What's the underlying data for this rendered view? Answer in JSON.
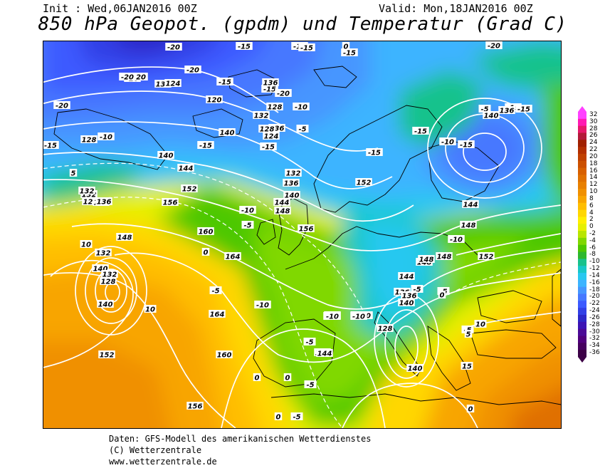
{
  "header": {
    "init": "Init : Wed,06JAN2016 00Z",
    "valid": "Valid: Mon,18JAN2016 00Z",
    "title": "850 hPa Geopot. (gpdm) und Temperatur (Grad C)"
  },
  "colors": {
    "contour": "#ffffff",
    "coast": "#000000"
  },
  "colorbar": {
    "ticks": [
      "32",
      "30",
      "28",
      "26",
      "24",
      "22",
      "20",
      "18",
      "16",
      "14",
      "12",
      "10",
      "8",
      "6",
      "4",
      "2",
      "0",
      "-2",
      "-4",
      "-6",
      "-8",
      "-10",
      "-12",
      "-14",
      "-16",
      "-18",
      "-20",
      "-22",
      "-24",
      "-26",
      "-28",
      "-30",
      "-32",
      "-34",
      "-36"
    ],
    "colors": [
      "#ff40ff",
      "#ff1ab3",
      "#e6196b",
      "#b31a3a",
      "#a02000",
      "#b32f00",
      "#c04000",
      "#cc5000",
      "#d86000",
      "#e07000",
      "#e88000",
      "#f09000",
      "#f8a500",
      "#ffbe00",
      "#ffd700",
      "#ffef00",
      "#e6f000",
      "#b8e600",
      "#80d800",
      "#4ec800",
      "#2eb82e",
      "#19c28c",
      "#19c8c8",
      "#28c8f0",
      "#3cb4ff",
      "#4696ff",
      "#4678ff",
      "#3c5aff",
      "#3240e6",
      "#2d28c8",
      "#3c14b4",
      "#4b0a96",
      "#50007d",
      "#46005f",
      "#3c0046"
    ]
  },
  "isotherm_labels": [
    "-20",
    "-20",
    "-20",
    "-15",
    "-15",
    "-20",
    "-15",
    "-20",
    "-20",
    "-15",
    "-15",
    "-10",
    "-15",
    "-10",
    "-15",
    "-5",
    "-15",
    "-15",
    "-10",
    "-5",
    "0",
    "-5",
    "-10",
    "-5",
    "0",
    "-10",
    "-15",
    "0",
    "10",
    "0",
    "-5",
    "-5",
    "-10",
    "-5",
    "0",
    "-5",
    "-15",
    "-10",
    "-20",
    "-15",
    "-15",
    "-10",
    "-10",
    "-5",
    "0",
    "5",
    "10",
    "10",
    "15",
    "-5",
    "-10",
    "-15",
    "-5",
    "0",
    "-10",
    "-20",
    "5"
  ],
  "geopotential_labels": [
    "132",
    "124",
    "136",
    "128",
    "136",
    "132",
    "128",
    "120",
    "128",
    "140",
    "124",
    "140",
    "132",
    "128",
    "144",
    "152",
    "136",
    "132",
    "140",
    "144",
    "148",
    "156",
    "156",
    "160",
    "164",
    "164",
    "160",
    "156",
    "144",
    "152",
    "148",
    "148",
    "144",
    "140",
    "136",
    "132",
    "128",
    "140",
    "152",
    "144",
    "148",
    "148",
    "152",
    "136",
    "140",
    "140",
    "128",
    "144",
    "148",
    "136",
    "140",
    "132",
    "124",
    "136",
    "132"
  ],
  "footer": {
    "line1": "Daten: GFS-Modell des amerikanischen Wetterdienstes",
    "line2": "(C) Wetterzentrale",
    "line3": "www.wetterzentrale.de"
  }
}
